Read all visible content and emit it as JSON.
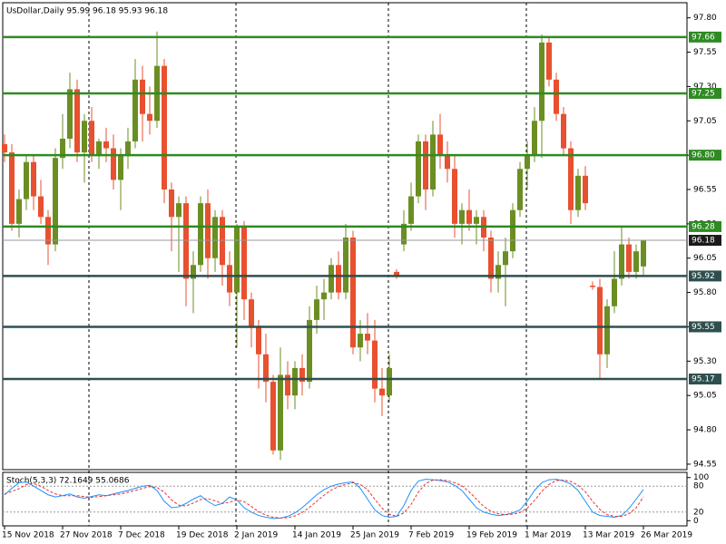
{
  "chart_data": [
    {
      "type": "candlestick",
      "title": "UsDollar,Daily  95.99 96.18 95.93 96.18",
      "categories": [
        "15 Nov 2018",
        null,
        null,
        null,
        null,
        null,
        null,
        null,
        "27 Nov 2018",
        null,
        null,
        null,
        null,
        null,
        null,
        null,
        "7 Dec 2018",
        null,
        null,
        null,
        null,
        null,
        null,
        null,
        "19 Dec 2018",
        null,
        null,
        null,
        null,
        null,
        null,
        null,
        "2 Jan 2019",
        null,
        null,
        null,
        null,
        null,
        null,
        null,
        "14 Jan 2019",
        null,
        null,
        null,
        null,
        null,
        null,
        null,
        "25 Jan 2019",
        null,
        null,
        null,
        null,
        null,
        null,
        null,
        "7 Feb 2019",
        null,
        null,
        null,
        null,
        null,
        null,
        null,
        "19 Feb 2019",
        null,
        null,
        null,
        null,
        null,
        null,
        null,
        "1 Mar 2019",
        null,
        null,
        null,
        null,
        null,
        null,
        null,
        "13 Mar 2019",
        null,
        null,
        null,
        null,
        null,
        null,
        null,
        "26 Mar 2019"
      ],
      "ohlc": [
        [
          96.88,
          96.95,
          96.75,
          96.82
        ],
        [
          96.82,
          96.88,
          96.25,
          96.3
        ],
        [
          96.3,
          96.55,
          96.2,
          96.48
        ],
        [
          96.48,
          96.8,
          96.4,
          96.75
        ],
        [
          96.75,
          96.8,
          96.4,
          96.5
        ],
        [
          96.5,
          96.62,
          96.3,
          96.35
        ],
        [
          96.35,
          96.4,
          96.0,
          96.15
        ],
        [
          96.15,
          96.85,
          96.1,
          96.78
        ],
        [
          96.78,
          97.1,
          96.7,
          96.92
        ],
        [
          96.92,
          97.4,
          96.85,
          97.28
        ],
        [
          97.28,
          97.35,
          96.75,
          96.82
        ],
        [
          96.82,
          97.1,
          96.6,
          97.05
        ],
        [
          97.05,
          97.15,
          96.75,
          96.8
        ],
        [
          96.8,
          96.92,
          96.7,
          96.9
        ],
        [
          96.9,
          97.0,
          96.75,
          96.85
        ],
        [
          96.85,
          96.95,
          96.55,
          96.62
        ],
        [
          96.62,
          96.85,
          96.4,
          96.8
        ],
        [
          96.8,
          97.0,
          96.7,
          96.9
        ],
        [
          96.9,
          97.5,
          96.85,
          97.35
        ],
        [
          97.35,
          97.45,
          96.9,
          97.1
        ],
        [
          97.1,
          97.3,
          96.95,
          97.05
        ],
        [
          97.05,
          97.7,
          97.0,
          97.45
        ],
        [
          97.45,
          97.5,
          96.45,
          96.55
        ],
        [
          96.55,
          96.6,
          96.1,
          96.35
        ],
        [
          96.35,
          96.5,
          95.95,
          96.45
        ],
        [
          96.45,
          96.5,
          95.7,
          95.9
        ],
        [
          95.9,
          96.1,
          95.65,
          96.0
        ],
        [
          96.0,
          96.5,
          95.95,
          96.45
        ],
        [
          96.45,
          96.55,
          95.9,
          96.05
        ],
        [
          96.05,
          96.4,
          95.95,
          96.35
        ],
        [
          96.35,
          96.4,
          95.85,
          96.0
        ],
        [
          96.0,
          96.1,
          95.7,
          95.8
        ],
        [
          95.8,
          96.3,
          95.4,
          96.28
        ],
        [
          96.28,
          96.32,
          95.6,
          95.75
        ],
        [
          95.75,
          95.8,
          95.4,
          95.55
        ],
        [
          95.55,
          95.6,
          95.1,
          95.35
        ],
        [
          95.35,
          95.5,
          95.0,
          95.15
        ],
        [
          95.15,
          95.2,
          94.62,
          94.65
        ],
        [
          94.65,
          95.4,
          94.58,
          95.2
        ],
        [
          95.2,
          95.3,
          94.95,
          95.05
        ],
        [
          95.05,
          95.3,
          94.95,
          95.25
        ],
        [
          95.25,
          95.35,
          95.05,
          95.15
        ],
        [
          95.15,
          95.7,
          95.1,
          95.6
        ],
        [
          95.6,
          95.85,
          95.5,
          95.75
        ],
        [
          95.75,
          95.9,
          95.6,
          95.8
        ],
        [
          95.8,
          96.05,
          95.75,
          96.0
        ],
        [
          96.0,
          96.1,
          95.75,
          95.8
        ],
        [
          95.8,
          96.3,
          95.75,
          96.2
        ],
        [
          96.2,
          96.25,
          95.35,
          95.4
        ],
        [
          95.4,
          95.6,
          95.3,
          95.5
        ],
        [
          95.5,
          95.65,
          95.35,
          95.45
        ],
        [
          95.45,
          95.6,
          95.0,
          95.1
        ],
        [
          95.1,
          95.25,
          94.9,
          95.05
        ],
        [
          95.05,
          95.35,
          95.0,
          95.25
        ],
        [
          95.95,
          95.97,
          95.9,
          95.92
        ],
        [
          96.15,
          96.4,
          96.1,
          96.3
        ],
        [
          96.3,
          96.6,
          96.25,
          96.5
        ],
        [
          96.5,
          96.95,
          96.45,
          96.9
        ],
        [
          96.9,
          96.95,
          96.4,
          96.55
        ],
        [
          96.55,
          97.05,
          96.5,
          96.95
        ],
        [
          96.95,
          97.1,
          96.7,
          96.8
        ],
        [
          96.8,
          96.9,
          96.6,
          96.7
        ],
        [
          96.7,
          96.8,
          96.2,
          96.3
        ],
        [
          96.3,
          96.45,
          96.15,
          96.4
        ],
        [
          96.4,
          96.55,
          96.25,
          96.3
        ],
        [
          96.3,
          96.4,
          96.15,
          96.35
        ],
        [
          96.35,
          96.4,
          96.1,
          96.2
        ],
        [
          96.2,
          96.25,
          95.8,
          95.9
        ],
        [
          95.9,
          96.1,
          95.8,
          96.0
        ],
        [
          96.0,
          96.2,
          95.7,
          96.1
        ],
        [
          96.1,
          96.45,
          96.05,
          96.4
        ],
        [
          96.4,
          96.75,
          96.35,
          96.7
        ],
        [
          96.7,
          96.9,
          96.55,
          96.8
        ],
        [
          96.8,
          97.15,
          96.75,
          97.05
        ],
        [
          97.05,
          97.68,
          96.78,
          97.62
        ],
        [
          97.62,
          97.66,
          97.3,
          97.35
        ],
        [
          97.35,
          97.4,
          97.05,
          97.1
        ],
        [
          97.1,
          97.15,
          96.8,
          96.85
        ],
        [
          96.85,
          96.9,
          96.3,
          96.4
        ],
        [
          96.4,
          96.7,
          96.35,
          96.65
        ],
        [
          96.65,
          96.72,
          96.4,
          96.45
        ],
        [
          95.85,
          95.88,
          95.82,
          95.84
        ],
        [
          95.84,
          95.9,
          95.17,
          95.35
        ],
        [
          95.35,
          95.75,
          95.25,
          95.7
        ],
        [
          95.7,
          96.1,
          95.65,
          95.9
        ],
        [
          95.9,
          96.28,
          95.85,
          96.15
        ],
        [
          96.15,
          96.2,
          95.9,
          95.95
        ],
        [
          95.95,
          96.15,
          95.9,
          96.1
        ],
        [
          95.99,
          96.18,
          95.93,
          96.18
        ]
      ],
      "up_color": "#6b8e23",
      "down_color": "#e8502f",
      "ylim": [
        94.51,
        97.91
      ],
      "yticks": [
        {
          "value": 97.8,
          "label": "97.80"
        },
        97.55,
        {
          "value": 97.3,
          "label": "97.30"
        },
        97.05,
        {
          "value": 96.8,
          "label": "96.80"
        },
        96.55,
        {
          "value": 96.3,
          "label": "96.30"
        },
        96.05,
        {
          "value": 95.8,
          "label": "95.80"
        },
        95.55,
        {
          "value": 95.3,
          "label": "95.30"
        },
        95.05,
        {
          "value": 94.8,
          "label": "94.80"
        },
        94.55
      ],
      "levels": [
        {
          "value": 97.66,
          "color": "#2e8b22"
        },
        {
          "value": 97.25,
          "color": "#2e8b22"
        },
        {
          "value": 96.8,
          "label": "96.80",
          "color": "#2e8b22"
        },
        {
          "value": 96.28,
          "color": "#2e8b22"
        },
        {
          "value": 96.18,
          "color": "#1a1a1a",
          "thin": true
        },
        {
          "value": 95.92,
          "color": "#2f4f4f"
        },
        {
          "value": 95.55,
          "color": "#2f4f4f"
        },
        {
          "value": 95.17,
          "color": "#2f4f4f"
        }
      ]
    },
    {
      "type": "line",
      "title": "Stoch(5,3,3) 72.1649 55.0686",
      "ylim": [
        -12,
        112
      ],
      "yticks": [
        100,
        80,
        20,
        0
      ],
      "series": [
        {
          "color": "#1e90ff",
          "dashed": false,
          "values": [
            60,
            75,
            88,
            90,
            80,
            70,
            60,
            55,
            58,
            62,
            55,
            52,
            56,
            60,
            58,
            62,
            66,
            70,
            75,
            80,
            82,
            70,
            45,
            30,
            32,
            40,
            50,
            58,
            45,
            35,
            40,
            55,
            48,
            30,
            20,
            12,
            8,
            5,
            6,
            10,
            18,
            30,
            45,
            60,
            72,
            80,
            85,
            88,
            90,
            75,
            50,
            25,
            12,
            8,
            10,
            35,
            70,
            92,
            96,
            95,
            93,
            90,
            82,
            70,
            50,
            30,
            20,
            15,
            12,
            14,
            18,
            25,
            45,
            70,
            88,
            95,
            96,
            92,
            85,
            70,
            45,
            20,
            12,
            10,
            8,
            12,
            28,
            50,
            72.1649
          ]
        },
        {
          "color": "#e8302f",
          "dashed": true,
          "values": [
            62,
            68,
            74,
            84,
            86,
            80,
            70,
            62,
            58,
            58,
            58,
            56,
            54,
            56,
            58,
            60,
            62,
            66,
            70,
            75,
            79,
            77,
            66,
            48,
            36,
            34,
            41,
            49,
            51,
            46,
            40,
            43,
            48,
            44,
            33,
            21,
            13,
            8,
            6,
            7,
            11,
            19,
            31,
            45,
            59,
            71,
            79,
            84,
            88,
            84,
            72,
            50,
            29,
            15,
            10,
            18,
            38,
            66,
            86,
            94,
            95,
            93,
            88,
            81,
            67,
            50,
            33,
            22,
            16,
            14,
            15,
            19,
            29,
            47,
            68,
            84,
            93,
            94,
            91,
            82,
            67,
            45,
            26,
            14,
            10,
            10,
            16,
            30,
            55.0686
          ]
        }
      ]
    }
  ]
}
